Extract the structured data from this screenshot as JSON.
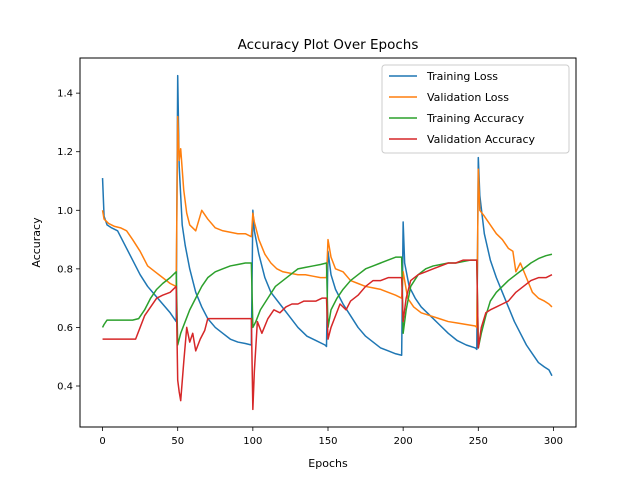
{
  "chart_data": {
    "type": "line",
    "title": "Accuracy Plot Over Epochs",
    "xlabel": "Epochs",
    "ylabel": "Accuracy",
    "xlim": [
      -15,
      315
    ],
    "ylim": [
      0.26,
      1.52
    ],
    "xticks": [
      0,
      50,
      100,
      150,
      200,
      250,
      300
    ],
    "yticks": [
      0.4,
      0.6,
      0.8,
      1.0,
      1.2,
      1.4
    ],
    "xtick_labels": [
      "0",
      "50",
      "100",
      "150",
      "200",
      "250",
      "300"
    ],
    "ytick_labels": [
      "0.4",
      "0.6",
      "0.8",
      "1.0",
      "1.2",
      "1.4"
    ],
    "grid": false,
    "legend_position": "top-right",
    "series": [
      {
        "name": "Training Loss",
        "color": "#1f77b4",
        "points": [
          [
            0,
            1.11
          ],
          [
            1,
            0.98
          ],
          [
            3,
            0.95
          ],
          [
            6,
            0.94
          ],
          [
            10,
            0.93
          ],
          [
            15,
            0.88
          ],
          [
            20,
            0.83
          ],
          [
            25,
            0.78
          ],
          [
            30,
            0.74
          ],
          [
            35,
            0.71
          ],
          [
            40,
            0.68
          ],
          [
            45,
            0.65
          ],
          [
            49,
            0.62
          ],
          [
            50,
            1.46
          ],
          [
            51,
            1.15
          ],
          [
            53,
            0.95
          ],
          [
            55,
            0.88
          ],
          [
            58,
            0.8
          ],
          [
            62,
            0.72
          ],
          [
            66,
            0.67
          ],
          [
            70,
            0.63
          ],
          [
            75,
            0.6
          ],
          [
            80,
            0.58
          ],
          [
            85,
            0.56
          ],
          [
            90,
            0.55
          ],
          [
            95,
            0.545
          ],
          [
            99,
            0.54
          ],
          [
            100,
            1.0
          ],
          [
            101,
            0.93
          ],
          [
            104,
            0.85
          ],
          [
            108,
            0.77
          ],
          [
            112,
            0.72
          ],
          [
            118,
            0.68
          ],
          [
            124,
            0.64
          ],
          [
            130,
            0.6
          ],
          [
            136,
            0.57
          ],
          [
            142,
            0.555
          ],
          [
            148,
            0.54
          ],
          [
            149,
            0.535
          ],
          [
            150,
            0.86
          ],
          [
            152,
            0.78
          ],
          [
            155,
            0.73
          ],
          [
            160,
            0.68
          ],
          [
            165,
            0.64
          ],
          [
            170,
            0.6
          ],
          [
            175,
            0.57
          ],
          [
            180,
            0.55
          ],
          [
            185,
            0.53
          ],
          [
            190,
            0.52
          ],
          [
            195,
            0.51
          ],
          [
            199,
            0.505
          ],
          [
            200,
            0.96
          ],
          [
            201,
            0.82
          ],
          [
            204,
            0.74
          ],
          [
            208,
            0.7
          ],
          [
            212,
            0.67
          ],
          [
            218,
            0.64
          ],
          [
            224,
            0.61
          ],
          [
            230,
            0.58
          ],
          [
            236,
            0.555
          ],
          [
            242,
            0.54
          ],
          [
            248,
            0.53
          ],
          [
            249,
            0.525
          ],
          [
            250,
            1.18
          ],
          [
            251,
            1.05
          ],
          [
            254,
            0.92
          ],
          [
            258,
            0.83
          ],
          [
            262,
            0.77
          ],
          [
            266,
            0.72
          ],
          [
            270,
            0.67
          ],
          [
            274,
            0.62
          ],
          [
            278,
            0.58
          ],
          [
            282,
            0.54
          ],
          [
            286,
            0.51
          ],
          [
            290,
            0.48
          ],
          [
            294,
            0.465
          ],
          [
            297,
            0.455
          ],
          [
            299,
            0.435
          ]
        ]
      },
      {
        "name": "Validation Loss",
        "color": "#ff7f0e",
        "points": [
          [
            0,
            1.0
          ],
          [
            1,
            0.97
          ],
          [
            4,
            0.955
          ],
          [
            8,
            0.945
          ],
          [
            12,
            0.94
          ],
          [
            16,
            0.93
          ],
          [
            20,
            0.9
          ],
          [
            25,
            0.86
          ],
          [
            30,
            0.81
          ],
          [
            35,
            0.79
          ],
          [
            40,
            0.77
          ],
          [
            45,
            0.75
          ],
          [
            49,
            0.74
          ],
          [
            50,
            1.32
          ],
          [
            51,
            1.17
          ],
          [
            52,
            1.21
          ],
          [
            54,
            1.07
          ],
          [
            56,
            0.99
          ],
          [
            58,
            0.95
          ],
          [
            62,
            0.93
          ],
          [
            66,
            1.0
          ],
          [
            70,
            0.97
          ],
          [
            75,
            0.94
          ],
          [
            80,
            0.93
          ],
          [
            85,
            0.925
          ],
          [
            90,
            0.92
          ],
          [
            95,
            0.92
          ],
          [
            99,
            0.91
          ],
          [
            100,
            0.99
          ],
          [
            101,
            0.96
          ],
          [
            104,
            0.9
          ],
          [
            108,
            0.85
          ],
          [
            112,
            0.82
          ],
          [
            116,
            0.8
          ],
          [
            120,
            0.79
          ],
          [
            125,
            0.785
          ],
          [
            130,
            0.78
          ],
          [
            135,
            0.78
          ],
          [
            140,
            0.775
          ],
          [
            145,
            0.77
          ],
          [
            149,
            0.77
          ],
          [
            150,
            0.9
          ],
          [
            152,
            0.84
          ],
          [
            155,
            0.8
          ],
          [
            160,
            0.79
          ],
          [
            165,
            0.76
          ],
          [
            170,
            0.75
          ],
          [
            175,
            0.74
          ],
          [
            180,
            0.735
          ],
          [
            185,
            0.73
          ],
          [
            190,
            0.72
          ],
          [
            195,
            0.71
          ],
          [
            199,
            0.7
          ],
          [
            200,
            0.79
          ],
          [
            203,
            0.7
          ],
          [
            207,
            0.67
          ],
          [
            212,
            0.65
          ],
          [
            218,
            0.64
          ],
          [
            224,
            0.63
          ],
          [
            230,
            0.62
          ],
          [
            236,
            0.615
          ],
          [
            242,
            0.61
          ],
          [
            248,
            0.605
          ],
          [
            249,
            0.6
          ],
          [
            250,
            1.14
          ],
          [
            251,
            1.0
          ],
          [
            254,
            0.98
          ],
          [
            258,
            0.95
          ],
          [
            262,
            0.92
          ],
          [
            266,
            0.9
          ],
          [
            270,
            0.87
          ],
          [
            273,
            0.86
          ],
          [
            275,
            0.79
          ],
          [
            278,
            0.82
          ],
          [
            282,
            0.77
          ],
          [
            286,
            0.72
          ],
          [
            290,
            0.7
          ],
          [
            294,
            0.69
          ],
          [
            297,
            0.68
          ],
          [
            299,
            0.67
          ]
        ]
      },
      {
        "name": "Training Accuracy",
        "color": "#2ca02c",
        "points": [
          [
            0,
            0.6
          ],
          [
            1,
            0.61
          ],
          [
            3,
            0.625
          ],
          [
            6,
            0.625
          ],
          [
            10,
            0.625
          ],
          [
            15,
            0.625
          ],
          [
            20,
            0.625
          ],
          [
            24,
            0.63
          ],
          [
            28,
            0.66
          ],
          [
            32,
            0.7
          ],
          [
            36,
            0.73
          ],
          [
            40,
            0.75
          ],
          [
            45,
            0.77
          ],
          [
            49,
            0.79
          ],
          [
            50,
            0.54
          ],
          [
            52,
            0.58
          ],
          [
            55,
            0.62
          ],
          [
            58,
            0.66
          ],
          [
            62,
            0.7
          ],
          [
            66,
            0.74
          ],
          [
            70,
            0.77
          ],
          [
            75,
            0.79
          ],
          [
            80,
            0.8
          ],
          [
            85,
            0.81
          ],
          [
            90,
            0.815
          ],
          [
            95,
            0.82
          ],
          [
            99,
            0.82
          ],
          [
            100,
            0.6
          ],
          [
            102,
            0.62
          ],
          [
            105,
            0.66
          ],
          [
            110,
            0.7
          ],
          [
            115,
            0.74
          ],
          [
            120,
            0.76
          ],
          [
            125,
            0.78
          ],
          [
            130,
            0.8
          ],
          [
            135,
            0.805
          ],
          [
            140,
            0.81
          ],
          [
            145,
            0.815
          ],
          [
            149,
            0.82
          ],
          [
            150,
            0.6
          ],
          [
            152,
            0.66
          ],
          [
            156,
            0.7
          ],
          [
            160,
            0.73
          ],
          [
            165,
            0.76
          ],
          [
            170,
            0.78
          ],
          [
            175,
            0.8
          ],
          [
            180,
            0.81
          ],
          [
            185,
            0.82
          ],
          [
            190,
            0.83
          ],
          [
            195,
            0.84
          ],
          [
            199,
            0.84
          ],
          [
            200,
            0.58
          ],
          [
            202,
            0.66
          ],
          [
            205,
            0.74
          ],
          [
            210,
            0.78
          ],
          [
            215,
            0.8
          ],
          [
            220,
            0.81
          ],
          [
            225,
            0.815
          ],
          [
            230,
            0.82
          ],
          [
            235,
            0.82
          ],
          [
            240,
            0.825
          ],
          [
            245,
            0.83
          ],
          [
            249,
            0.83
          ],
          [
            250,
            0.53
          ],
          [
            252,
            0.58
          ],
          [
            255,
            0.64
          ],
          [
            258,
            0.69
          ],
          [
            262,
            0.72
          ],
          [
            266,
            0.74
          ],
          [
            270,
            0.76
          ],
          [
            275,
            0.78
          ],
          [
            280,
            0.8
          ],
          [
            285,
            0.82
          ],
          [
            290,
            0.835
          ],
          [
            295,
            0.845
          ],
          [
            299,
            0.85
          ]
        ]
      },
      {
        "name": "Validation Accuracy",
        "color": "#d62728",
        "points": [
          [
            0,
            0.56
          ],
          [
            5,
            0.56
          ],
          [
            10,
            0.56
          ],
          [
            15,
            0.56
          ],
          [
            20,
            0.56
          ],
          [
            22,
            0.56
          ],
          [
            25,
            0.6
          ],
          [
            28,
            0.64
          ],
          [
            32,
            0.67
          ],
          [
            36,
            0.7
          ],
          [
            40,
            0.71
          ],
          [
            45,
            0.72
          ],
          [
            49,
            0.74
          ],
          [
            50,
            0.42
          ],
          [
            51,
            0.38
          ],
          [
            52,
            0.35
          ],
          [
            54,
            0.48
          ],
          [
            56,
            0.6
          ],
          [
            58,
            0.55
          ],
          [
            60,
            0.58
          ],
          [
            62,
            0.52
          ],
          [
            65,
            0.56
          ],
          [
            68,
            0.59
          ],
          [
            70,
            0.63
          ],
          [
            75,
            0.63
          ],
          [
            80,
            0.63
          ],
          [
            85,
            0.63
          ],
          [
            90,
            0.63
          ],
          [
            95,
            0.63
          ],
          [
            99,
            0.63
          ],
          [
            100,
            0.32
          ],
          [
            101,
            0.45
          ],
          [
            103,
            0.62
          ],
          [
            106,
            0.58
          ],
          [
            110,
            0.63
          ],
          [
            114,
            0.66
          ],
          [
            118,
            0.65
          ],
          [
            122,
            0.67
          ],
          [
            126,
            0.68
          ],
          [
            130,
            0.68
          ],
          [
            134,
            0.69
          ],
          [
            138,
            0.69
          ],
          [
            142,
            0.69
          ],
          [
            146,
            0.7
          ],
          [
            149,
            0.7
          ],
          [
            150,
            0.56
          ],
          [
            152,
            0.6
          ],
          [
            155,
            0.64
          ],
          [
            158,
            0.68
          ],
          [
            162,
            0.66
          ],
          [
            165,
            0.69
          ],
          [
            170,
            0.71
          ],
          [
            175,
            0.74
          ],
          [
            180,
            0.76
          ],
          [
            185,
            0.76
          ],
          [
            190,
            0.77
          ],
          [
            195,
            0.77
          ],
          [
            199,
            0.77
          ],
          [
            200,
            0.62
          ],
          [
            202,
            0.7
          ],
          [
            205,
            0.76
          ],
          [
            210,
            0.78
          ],
          [
            215,
            0.79
          ],
          [
            220,
            0.8
          ],
          [
            225,
            0.81
          ],
          [
            230,
            0.82
          ],
          [
            235,
            0.82
          ],
          [
            240,
            0.83
          ],
          [
            245,
            0.83
          ],
          [
            249,
            0.83
          ],
          [
            250,
            0.53
          ],
          [
            252,
            0.6
          ],
          [
            255,
            0.65
          ],
          [
            258,
            0.66
          ],
          [
            262,
            0.67
          ],
          [
            266,
            0.68
          ],
          [
            270,
            0.69
          ],
          [
            275,
            0.72
          ],
          [
            280,
            0.74
          ],
          [
            285,
            0.76
          ],
          [
            290,
            0.77
          ],
          [
            295,
            0.77
          ],
          [
            299,
            0.78
          ]
        ]
      }
    ]
  }
}
